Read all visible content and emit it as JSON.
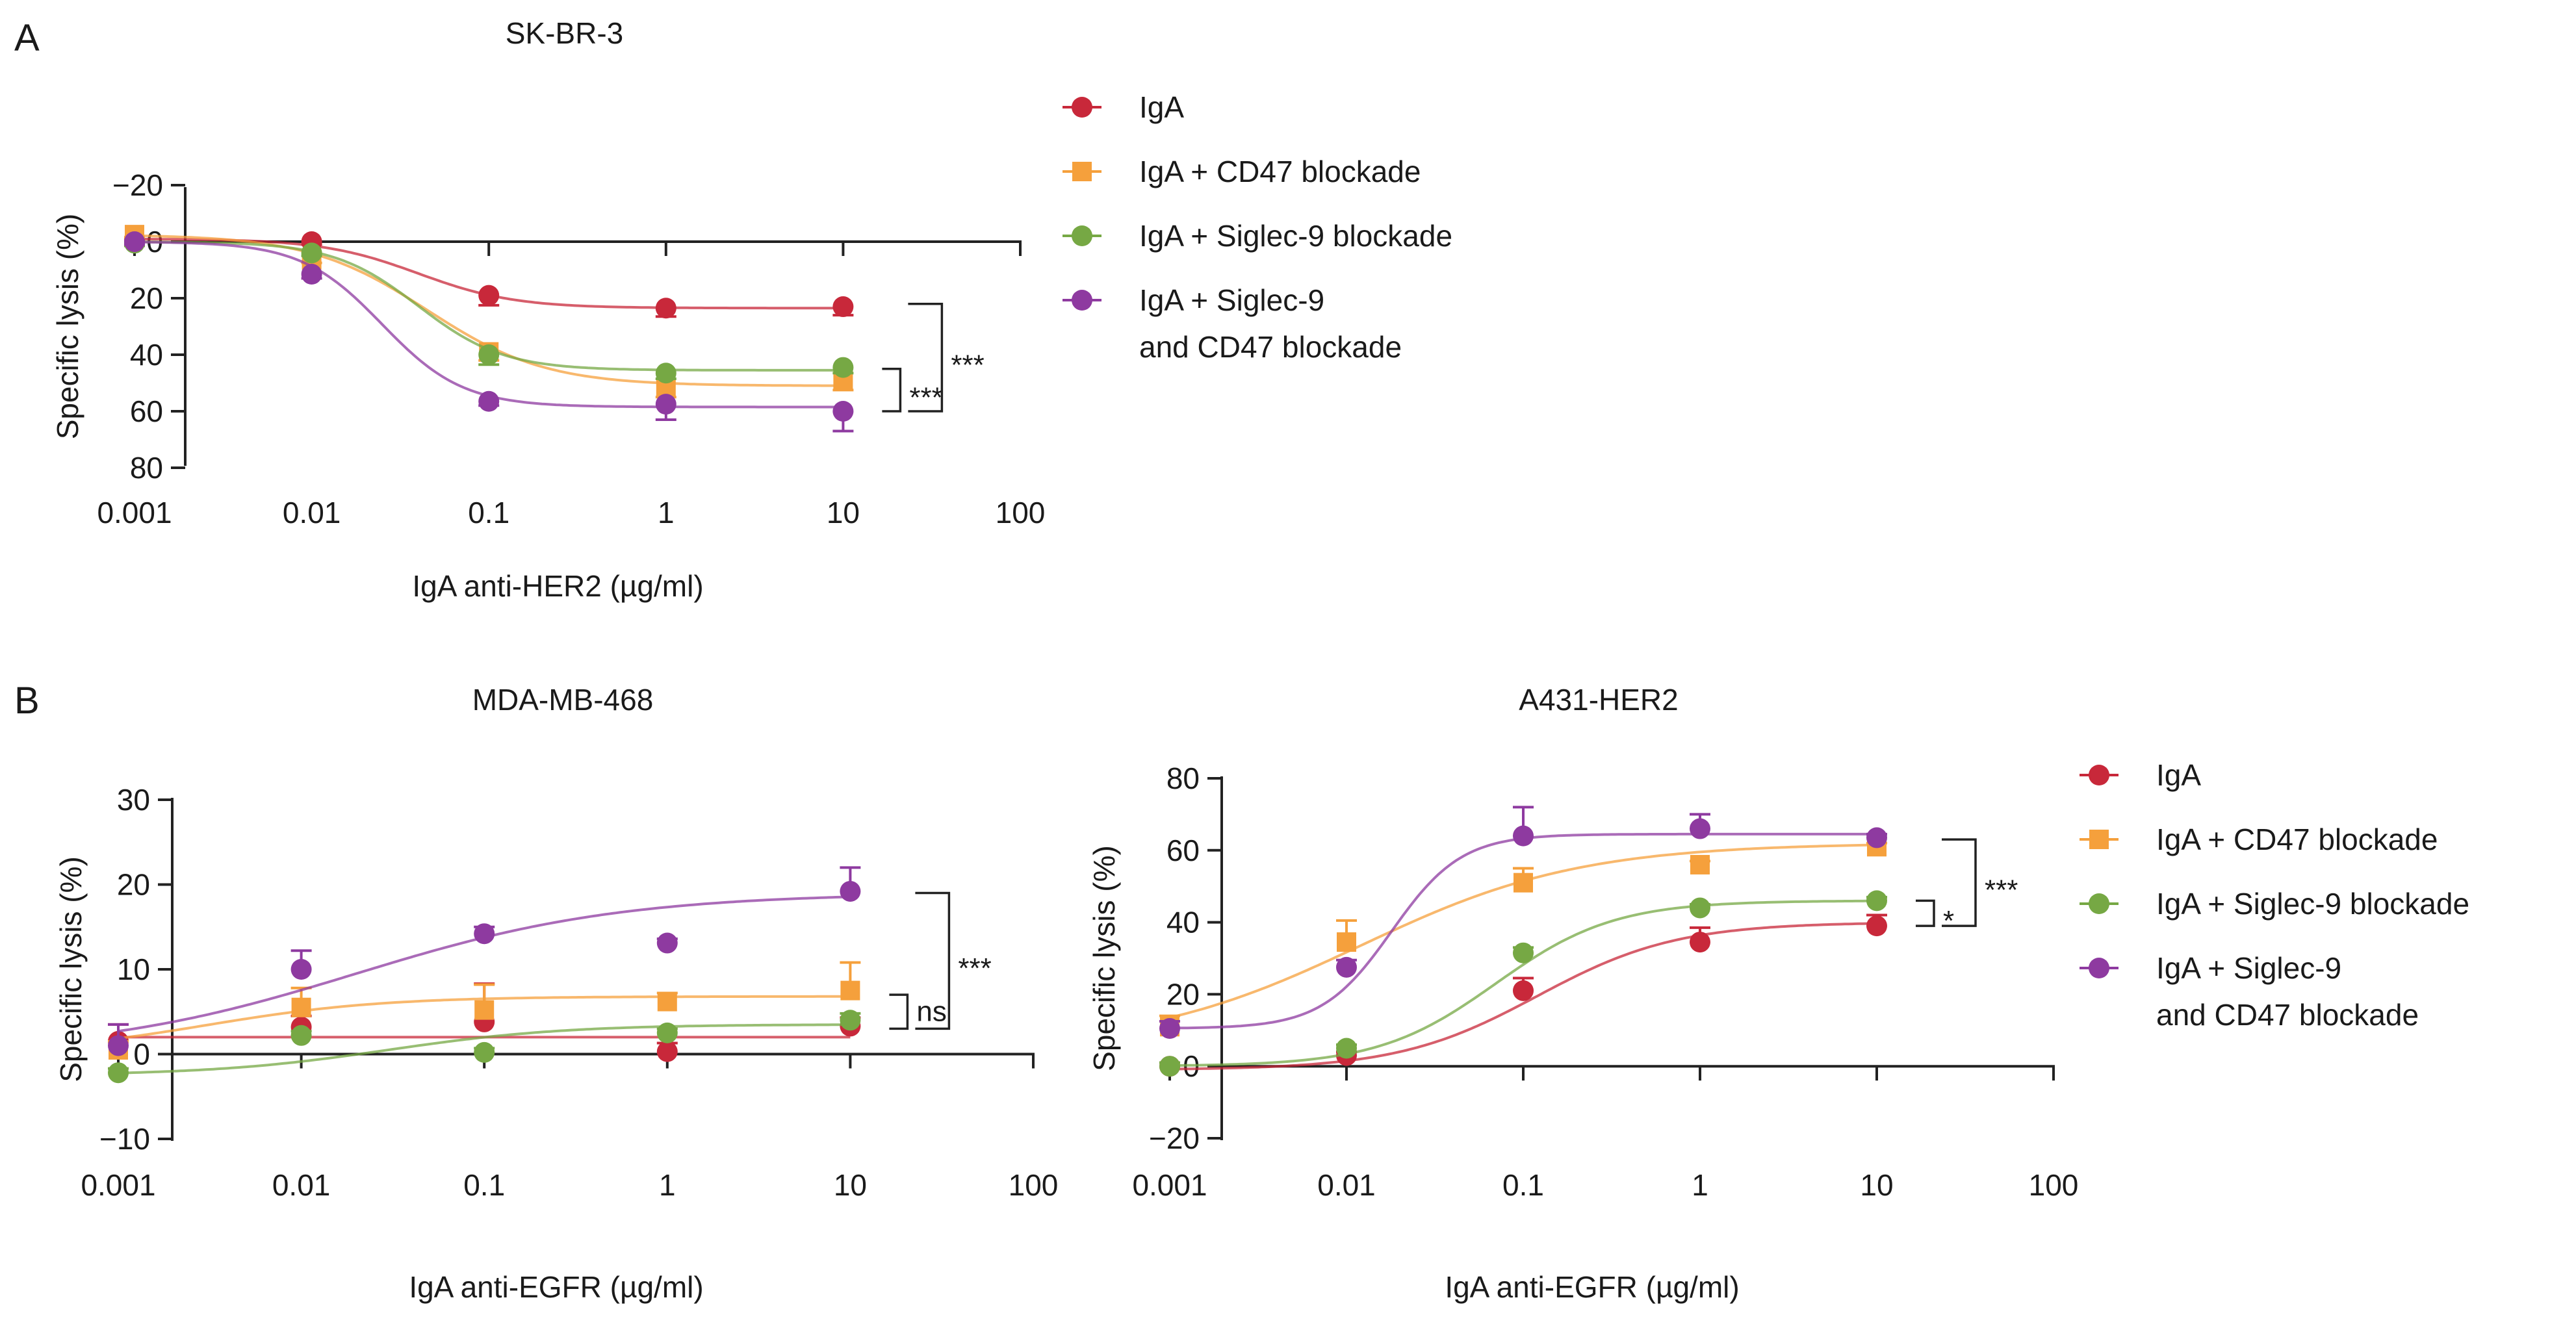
{
  "panel_labels": {
    "a": "A",
    "b": "B"
  },
  "legend_entries": [
    "IgA",
    "IgA + CD47 blockade",
    "IgA + Siglec-9 blockade",
    "IgA + Siglec-9",
    "and CD47 blockade"
  ],
  "chart_data": [
    {
      "type": "scatter",
      "title": "SK-BR-3",
      "xlabel": "IgA anti-HER2 (µg/ml)",
      "ylabel": "Specific lysis (%)",
      "xscale": "log",
      "xlim": [
        0.001,
        100
      ],
      "ylim": [
        -20,
        80
      ],
      "xticks": [
        0.001,
        0.01,
        0.1,
        1,
        10,
        100
      ],
      "xtick_labels": [
        "0.001",
        "0.01",
        "0.1",
        "1",
        "10",
        "100"
      ],
      "yticks": [
        -20,
        0,
        20,
        40,
        60,
        80
      ],
      "ytick_labels": [
        "−20",
        "0",
        "20",
        "40",
        "60",
        "80"
      ],
      "x": [
        0.001,
        0.01,
        0.1,
        1,
        10
      ],
      "series": [
        {
          "name": "IgA",
          "color": "#c8283a",
          "marker": "circle",
          "values": [
            -1,
            0,
            19,
            23.5,
            23
          ],
          "errors": [
            1,
            1,
            3.5,
            3,
            3
          ],
          "fit": {
            "bottom": -1,
            "top": 23.5,
            "ec50": 0.04,
            "hill": 1.6
          }
        },
        {
          "name": "IgA + CD47 blockade",
          "color": "#f5a03c",
          "marker": "square",
          "values": [
            -2.5,
            6.5,
            39,
            51.5,
            49
          ],
          "errors": [
            1,
            1,
            3,
            3.5,
            3.5
          ],
          "fit": {
            "bottom": -2.5,
            "top": 51,
            "ec50": 0.045,
            "hill": 1.3
          }
        },
        {
          "name": "IgA + Siglec-9 blockade",
          "color": "#76a844",
          "marker": "circle",
          "values": [
            0.5,
            4,
            40,
            46.5,
            44.5
          ],
          "errors": [
            1,
            1,
            3.5,
            2,
            2
          ],
          "fit": {
            "bottom": 0,
            "top": 45.5,
            "ec50": 0.04,
            "hill": 1.8
          }
        },
        {
          "name": "IgA + Siglec-9 and CD47 blockade",
          "color": "#8e3aa0",
          "marker": "circle",
          "values": [
            0,
            11.5,
            56.5,
            57.5,
            60
          ],
          "errors": [
            1,
            1.5,
            1.5,
            5.5,
            7
          ],
          "fit": {
            "bottom": 0,
            "top": 58.5,
            "ec50": 0.025,
            "hill": 1.9
          }
        }
      ],
      "annotations": [
        {
          "text": "***",
          "y_from": 45,
          "y_to": 60,
          "bracket": "inner"
        },
        {
          "text": "***",
          "y_from": 22,
          "y_to": 60,
          "bracket": "outer"
        }
      ]
    },
    {
      "type": "scatter",
      "title": "MDA-MB-468",
      "xlabel": "IgA anti-EGFR (µg/ml)",
      "ylabel": "Specific lysis (%)",
      "xscale": "log",
      "xlim": [
        0.001,
        100
      ],
      "ylim": [
        -10,
        30
      ],
      "xticks": [
        0.001,
        0.01,
        0.1,
        1,
        10,
        100
      ],
      "xtick_labels": [
        "0.001",
        "0.01",
        "0.1",
        "1",
        "10",
        "100"
      ],
      "yticks": [
        -10,
        0,
        10,
        20,
        30
      ],
      "ytick_labels": [
        "−10",
        "0",
        "10",
        "20",
        "30"
      ],
      "x": [
        0.001,
        0.01,
        0.1,
        1,
        10
      ],
      "series": [
        {
          "name": "IgA",
          "color": "#c8283a",
          "marker": "circle",
          "values": [
            1.5,
            3.2,
            3.8,
            0.3,
            3.3
          ],
          "errors": [
            2,
            1.3,
            4.5,
            1,
            1
          ],
          "fit": {
            "bottom": 2,
            "top": 2,
            "ec50": 0.1,
            "hill": 1
          }
        },
        {
          "name": "IgA + CD47 blockade",
          "color": "#f5a03c",
          "marker": "square",
          "values": [
            0.5,
            5.5,
            5.2,
            6.2,
            7.5
          ],
          "errors": [
            1,
            2.3,
            3,
            1,
            3.3
          ],
          "fit": {
            "bottom": 0,
            "top": 6.8,
            "ec50": 0.003,
            "hill": 0.9
          }
        },
        {
          "name": "IgA + Siglec-9 blockade",
          "color": "#76a844",
          "marker": "circle",
          "values": [
            -2.2,
            2.2,
            0.2,
            2.5,
            4
          ],
          "errors": [
            0.5,
            0.5,
            0.5,
            0.5,
            0.8
          ],
          "fit": {
            "bottom": -2.5,
            "top": 3.5,
            "ec50": 0.03,
            "hill": 0.9
          }
        },
        {
          "name": "IgA + Siglec-9 and CD47 blockade",
          "color": "#8e3aa0",
          "marker": "circle",
          "values": [
            1,
            10,
            14.2,
            13.1,
            19.2
          ],
          "errors": [
            2.5,
            2.2,
            0.8,
            0.5,
            2.8
          ],
          "fit": {
            "bottom": 0,
            "top": 19,
            "ec50": 0.02,
            "hill": 0.6
          }
        }
      ],
      "annotations": [
        {
          "text": "ns",
          "y_from": 3,
          "y_to": 7,
          "bracket": "inner"
        },
        {
          "text": "***",
          "y_from": 3,
          "y_to": 19,
          "bracket": "outer"
        }
      ]
    },
    {
      "type": "scatter",
      "title": "A431-HER2",
      "xlabel": "IgA anti-EGFR (µg/ml)",
      "ylabel": "Specific lysis (%)",
      "xscale": "log",
      "xlim": [
        0.001,
        100
      ],
      "ylim": [
        -20,
        80
      ],
      "xticks": [
        0.001,
        0.01,
        0.1,
        1,
        10,
        100
      ],
      "xtick_labels": [
        "0.001",
        "0.01",
        "0.1",
        "1",
        "10",
        "100"
      ],
      "yticks": [
        -20,
        0,
        20,
        40,
        60,
        80
      ],
      "ytick_labels": [
        "−20",
        "0",
        "20",
        "40",
        "60",
        "80"
      ],
      "x": [
        0.001,
        0.01,
        0.1,
        1,
        10
      ],
      "series": [
        {
          "name": "IgA",
          "color": "#c8283a",
          "marker": "circle",
          "values": [
            0,
            3,
            21,
            34.5,
            39
          ],
          "errors": [
            1,
            1,
            3.5,
            4,
            3
          ],
          "fit": {
            "bottom": -1,
            "top": 40,
            "ec50": 0.12,
            "hill": 1.1
          }
        },
        {
          "name": "IgA + CD47 blockade",
          "color": "#f5a03c",
          "marker": "square",
          "values": [
            11,
            34.5,
            51,
            56,
            61
          ],
          "errors": [
            3,
            6,
            4,
            1,
            1
          ],
          "fit": {
            "bottom": 5,
            "top": 62,
            "ec50": 0.012,
            "hill": 0.7
          }
        },
        {
          "name": "IgA + Siglec-9 blockade",
          "color": "#76a844",
          "marker": "circle",
          "values": [
            0,
            5,
            31.5,
            44,
            46
          ],
          "errors": [
            1,
            1,
            1.5,
            1,
            1
          ],
          "fit": {
            "bottom": 0,
            "top": 46,
            "ec50": 0.07,
            "hill": 1.3
          }
        },
        {
          "name": "IgA + Siglec-9 and CD47 blockade",
          "color": "#8e3aa0",
          "marker": "circle",
          "values": [
            10.5,
            27.5,
            64,
            66,
            63.5
          ],
          "errors": [
            2,
            2,
            8,
            4,
            1
          ],
          "fit": {
            "bottom": 10.5,
            "top": 64.5,
            "ec50": 0.018,
            "hill": 2.2
          }
        }
      ],
      "annotations": [
        {
          "text": "*",
          "y_from": 39,
          "y_to": 46,
          "bracket": "inner"
        },
        {
          "text": "***",
          "y_from": 39,
          "y_to": 63,
          "bracket": "outer"
        }
      ]
    }
  ]
}
